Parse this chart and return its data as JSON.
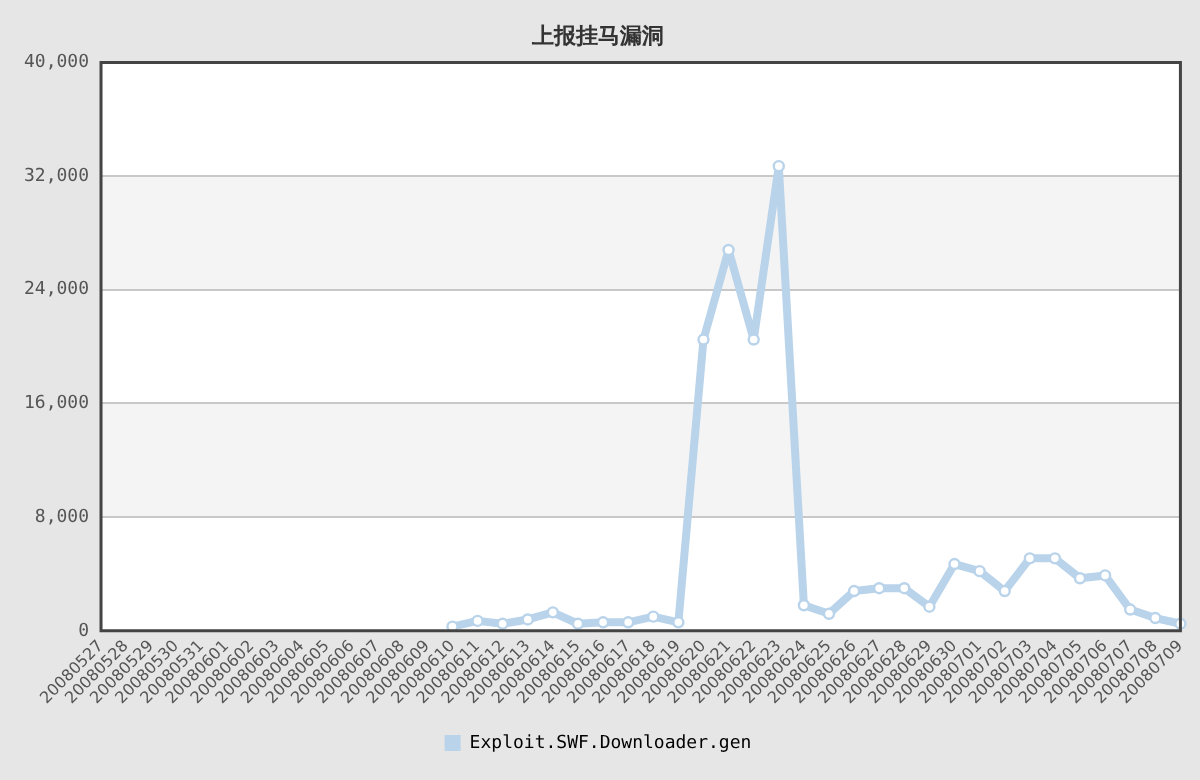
{
  "chart_data": {
    "type": "line",
    "title": "上报挂马漏洞",
    "categories": [
      "20080527",
      "20080528",
      "20080529",
      "20080530",
      "20080531",
      "20080601",
      "20080602",
      "20080603",
      "20080604",
      "20080605",
      "20080606",
      "20080607",
      "20080608",
      "20080609",
      "20080610",
      "20080611",
      "20080612",
      "20080613",
      "20080614",
      "20080615",
      "20080616",
      "20080617",
      "20080618",
      "20080619",
      "20080620",
      "20080621",
      "20080622",
      "20080623",
      "20080624",
      "20080625",
      "20080626",
      "20080627",
      "20080628",
      "20080629",
      "20080630",
      "20080701",
      "20080702",
      "20080703",
      "20080704",
      "20080705",
      "20080706",
      "20080707",
      "20080708",
      "20080709"
    ],
    "series": [
      {
        "name": "Exploit.SWF.Downloader.gen",
        "color": "#b9d3ea",
        "values": [
          null,
          null,
          null,
          null,
          null,
          null,
          null,
          null,
          null,
          null,
          null,
          null,
          null,
          null,
          300,
          700,
          500,
          800,
          1300,
          500,
          600,
          600,
          1000,
          600,
          20500,
          26800,
          20500,
          32700,
          1800,
          1200,
          2800,
          3000,
          3000,
          1700,
          4700,
          4200,
          2800,
          5100,
          5100,
          3700,
          3900,
          1500,
          900,
          500
        ]
      }
    ],
    "ylim": [
      0,
      40000
    ],
    "yticks": [
      0,
      {
        "value": 8000,
        "label": "8,000"
      },
      {
        "value": 16000,
        "label": "16,000"
      },
      {
        "value": 24000,
        "label": "24,000"
      },
      {
        "value": 32000,
        "label": "32,000"
      },
      {
        "value": 40000,
        "label": "40,000"
      }
    ],
    "grid": "y",
    "legend": "bottom",
    "marker": "circle",
    "line_style": "solid"
  }
}
